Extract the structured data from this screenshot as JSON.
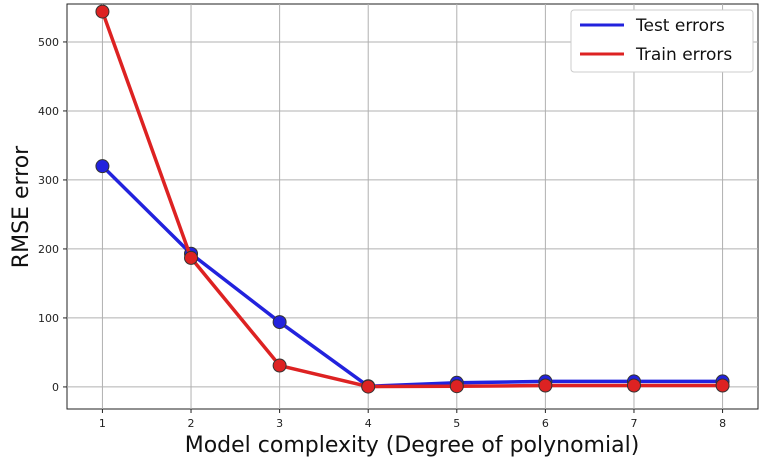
{
  "chart_data": {
    "type": "line",
    "title": "",
    "xlabel": "Model complexity (Degree of polynomial)",
    "ylabel": "RMSE error",
    "x": [
      1,
      2,
      3,
      4,
      5,
      6,
      7,
      8
    ],
    "xlim": [
      0.6,
      8.4
    ],
    "ylim": [
      -32,
      555
    ],
    "x_ticks": [
      1,
      2,
      3,
      4,
      5,
      6,
      7,
      8
    ],
    "y_ticks": [
      0,
      100,
      200,
      300,
      400,
      500
    ],
    "grid": true,
    "legend_position": "top-right",
    "series": [
      {
        "name": "Test errors",
        "color": "#2222dd",
        "values": [
          320,
          193,
          94,
          1,
          6,
          8,
          8,
          8
        ]
      },
      {
        "name": "Train errors",
        "color": "#dd2222",
        "values": [
          544,
          187,
          31,
          0.5,
          1,
          2,
          2,
          2
        ]
      }
    ]
  }
}
